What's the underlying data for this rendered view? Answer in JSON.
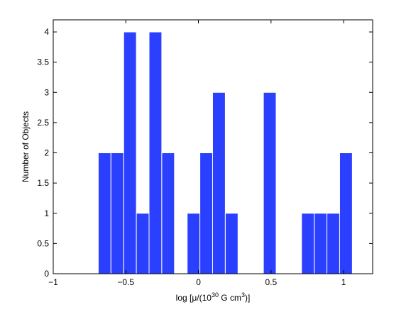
{
  "chart_data": {
    "type": "bar",
    "title": "",
    "xlabel": {
      "prefix": "log [μ/(10",
      "sup1": "30",
      "mid": " G cm",
      "sup2": "3",
      "suffix": ")]"
    },
    "ylabel": "Number of Objects",
    "xlim": [
      -1,
      1.2
    ],
    "ylim": [
      0,
      4.2
    ],
    "bin_width": 0.0875,
    "xticks": [
      {
        "value": -1,
        "label": "−1"
      },
      {
        "value": -0.5,
        "label": "−0.5"
      },
      {
        "value": 0,
        "label": "0"
      },
      {
        "value": 0.5,
        "label": "0.5"
      },
      {
        "value": 1,
        "label": "1"
      }
    ],
    "yticks": [
      {
        "value": 0,
        "label": "0"
      },
      {
        "value": 0.5,
        "label": "0.5"
      },
      {
        "value": 1,
        "label": "1"
      },
      {
        "value": 1.5,
        "label": "1.5"
      },
      {
        "value": 2,
        "label": "2"
      },
      {
        "value": 2.5,
        "label": "2.5"
      },
      {
        "value": 3,
        "label": "3"
      },
      {
        "value": 3.5,
        "label": "3.5"
      },
      {
        "value": 4,
        "label": "4"
      }
    ],
    "bins": [
      {
        "start": -0.69,
        "count": 2
      },
      {
        "start": -0.6025,
        "count": 2
      },
      {
        "start": -0.515,
        "count": 4
      },
      {
        "start": -0.4275,
        "count": 1
      },
      {
        "start": -0.34,
        "count": 4
      },
      {
        "start": -0.2525,
        "count": 2
      },
      {
        "start": -0.165,
        "count": 0
      },
      {
        "start": -0.0775,
        "count": 1
      },
      {
        "start": 0.01,
        "count": 2
      },
      {
        "start": 0.0975,
        "count": 3
      },
      {
        "start": 0.185,
        "count": 1
      },
      {
        "start": 0.2725,
        "count": 0
      },
      {
        "start": 0.36,
        "count": 0
      },
      {
        "start": 0.4475,
        "count": 3
      },
      {
        "start": 0.535,
        "count": 0
      },
      {
        "start": 0.6225,
        "count": 0
      },
      {
        "start": 0.71,
        "count": 1
      },
      {
        "start": 0.7975,
        "count": 1
      },
      {
        "start": 0.885,
        "count": 1
      },
      {
        "start": 0.9725,
        "count": 2
      }
    ],
    "bar_color": "#2B3FFF",
    "bar_edge_color": "#FFFFFF",
    "grid": false,
    "legend": "none"
  }
}
